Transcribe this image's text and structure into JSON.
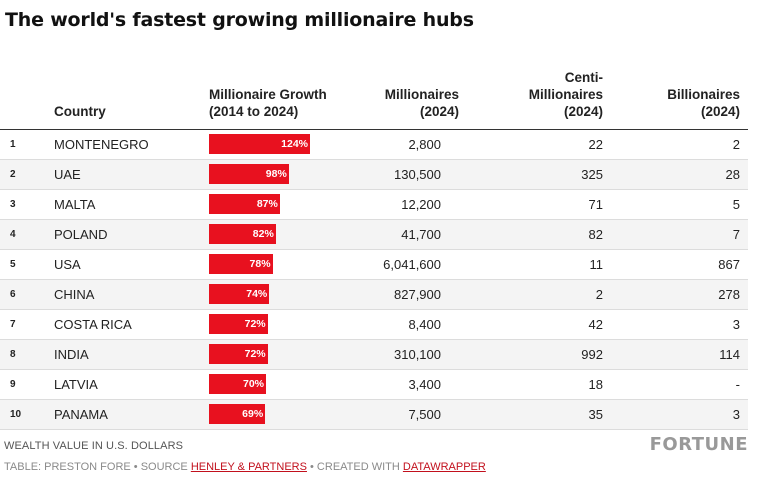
{
  "title": "The world's fastest growing millionaire hubs",
  "columns": {
    "country": "Country",
    "growth": "Millionaire Growth (2014 to 2024)",
    "millionaires": "Millionaires (2024)",
    "centi": "Centi-Millionaires (2024)",
    "billionaires": "Billionaires (2024)"
  },
  "chart_data": {
    "type": "table",
    "title": "The world's fastest growing millionaire hubs",
    "columns": [
      "Country",
      "Millionaire Growth (2014 to 2024)",
      "Millionaires (2024)",
      "Centi-Millionaires (2024)",
      "Billionaires (2024)"
    ],
    "growth_max": 124,
    "rows": [
      {
        "rank": "1",
        "country": "MONTENEGRO",
        "growth": 124,
        "growth_label": "124%",
        "millionaires": "2,800",
        "centi": "22",
        "billionaires": "2"
      },
      {
        "rank": "2",
        "country": "UAE",
        "growth": 98,
        "growth_label": "98%",
        "millionaires": "130,500",
        "centi": "325",
        "billionaires": "28"
      },
      {
        "rank": "3",
        "country": "MALTA",
        "growth": 87,
        "growth_label": "87%",
        "millionaires": "12,200",
        "centi": "71",
        "billionaires": "5"
      },
      {
        "rank": "4",
        "country": "POLAND",
        "growth": 82,
        "growth_label": "82%",
        "millionaires": "41,700",
        "centi": "82",
        "billionaires": "7"
      },
      {
        "rank": "5",
        "country": "USA",
        "growth": 78,
        "growth_label": "78%",
        "millionaires": "6,041,600",
        "centi": "11",
        "billionaires": "867"
      },
      {
        "rank": "6",
        "country": "CHINA",
        "growth": 74,
        "growth_label": "74%",
        "millionaires": "827,900",
        "centi": "2",
        "billionaires": "278"
      },
      {
        "rank": "7",
        "country": "COSTA RICA",
        "growth": 72,
        "growth_label": "72%",
        "millionaires": "8,400",
        "centi": "42",
        "billionaires": "3"
      },
      {
        "rank": "8",
        "country": "INDIA",
        "growth": 72,
        "growth_label": "72%",
        "millionaires": "310,100",
        "centi": "992",
        "billionaires": "114"
      },
      {
        "rank": "9",
        "country": "LATVIA",
        "growth": 70,
        "growth_label": "70%",
        "millionaires": "3,400",
        "centi": "18",
        "billionaires": "-"
      },
      {
        "rank": "10",
        "country": "PANAMA",
        "growth": 69,
        "growth_label": "69%",
        "millionaires": "7,500",
        "centi": "35",
        "billionaires": "3"
      }
    ]
  },
  "colors": {
    "bar": "#e8111f",
    "link": "#c2101d"
  },
  "footer": {
    "note": "WEALTH VALUE IN U.S. DOLLARS",
    "brand": "FORTUNE",
    "credit_prefix": "TABLE: PRESTON FORE • SOURCE ",
    "source_link": "HENLEY & PARTNERS",
    "credit_mid": " • CREATED WITH ",
    "tool_link": "DATAWRAPPER"
  }
}
